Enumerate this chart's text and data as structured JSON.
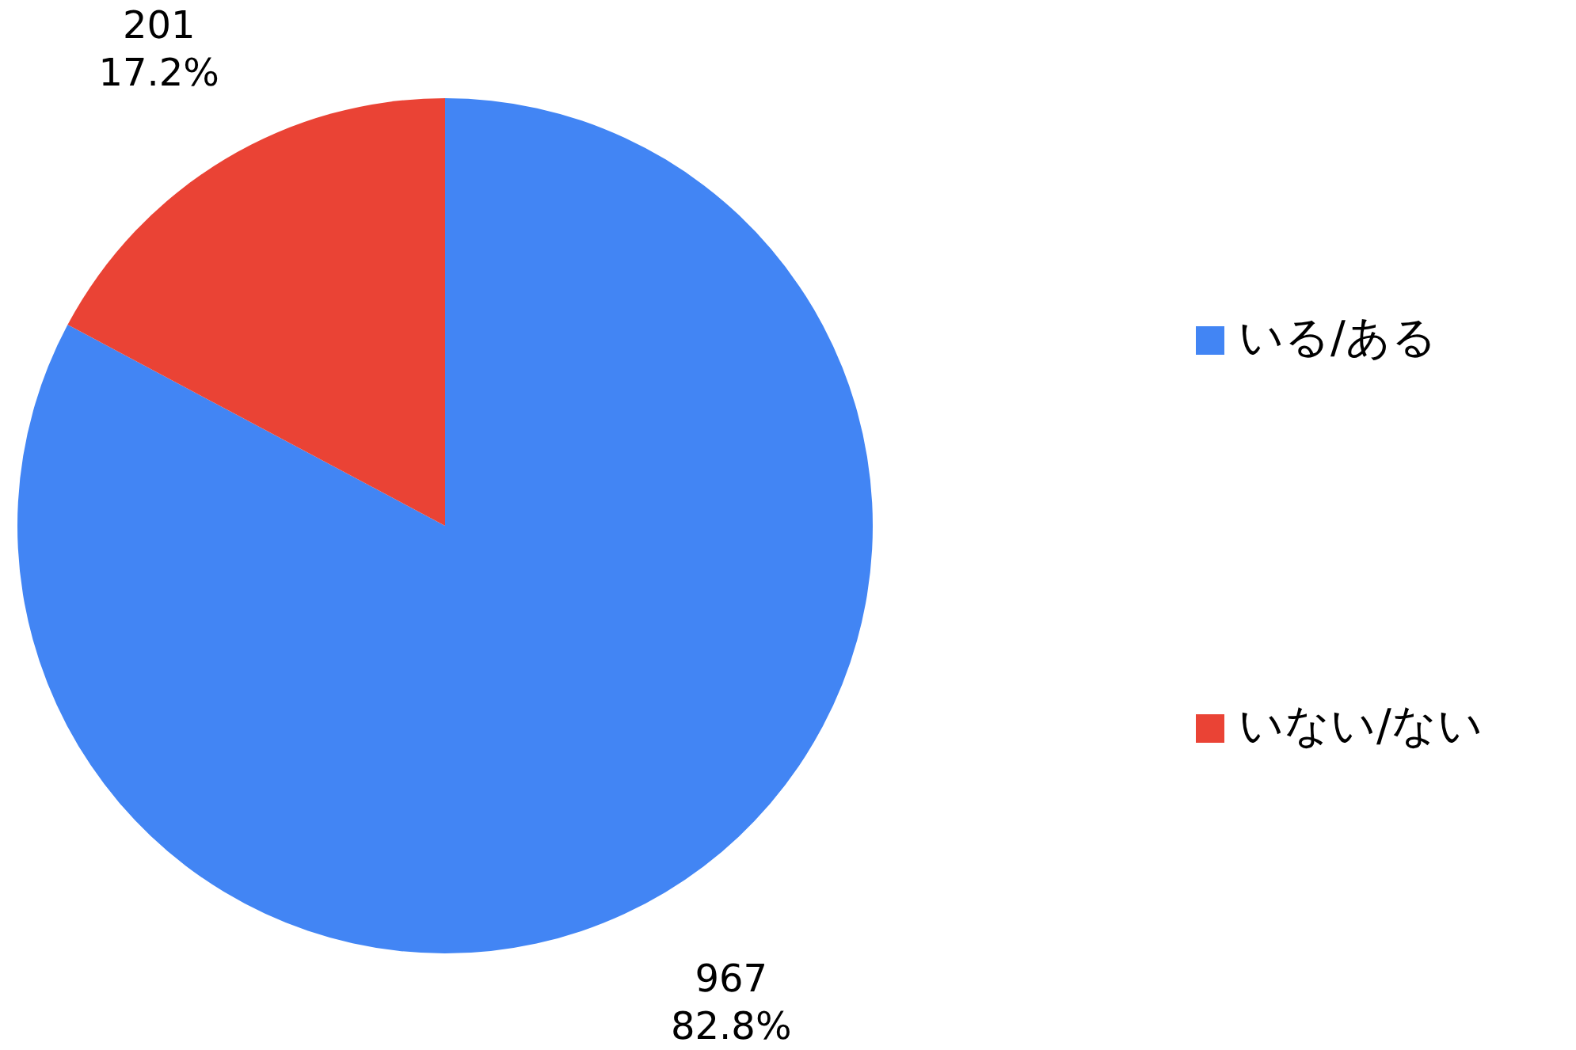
{
  "chart_data": {
    "type": "pie",
    "categories": [
      "いる/ある",
      "いない/ない"
    ],
    "values": [
      967,
      201
    ],
    "colors": [
      "#4285f4",
      "#ea4335"
    ],
    "value_labels": [
      "967\n82.8%",
      "201\n17.2%"
    ],
    "legend": "right"
  }
}
